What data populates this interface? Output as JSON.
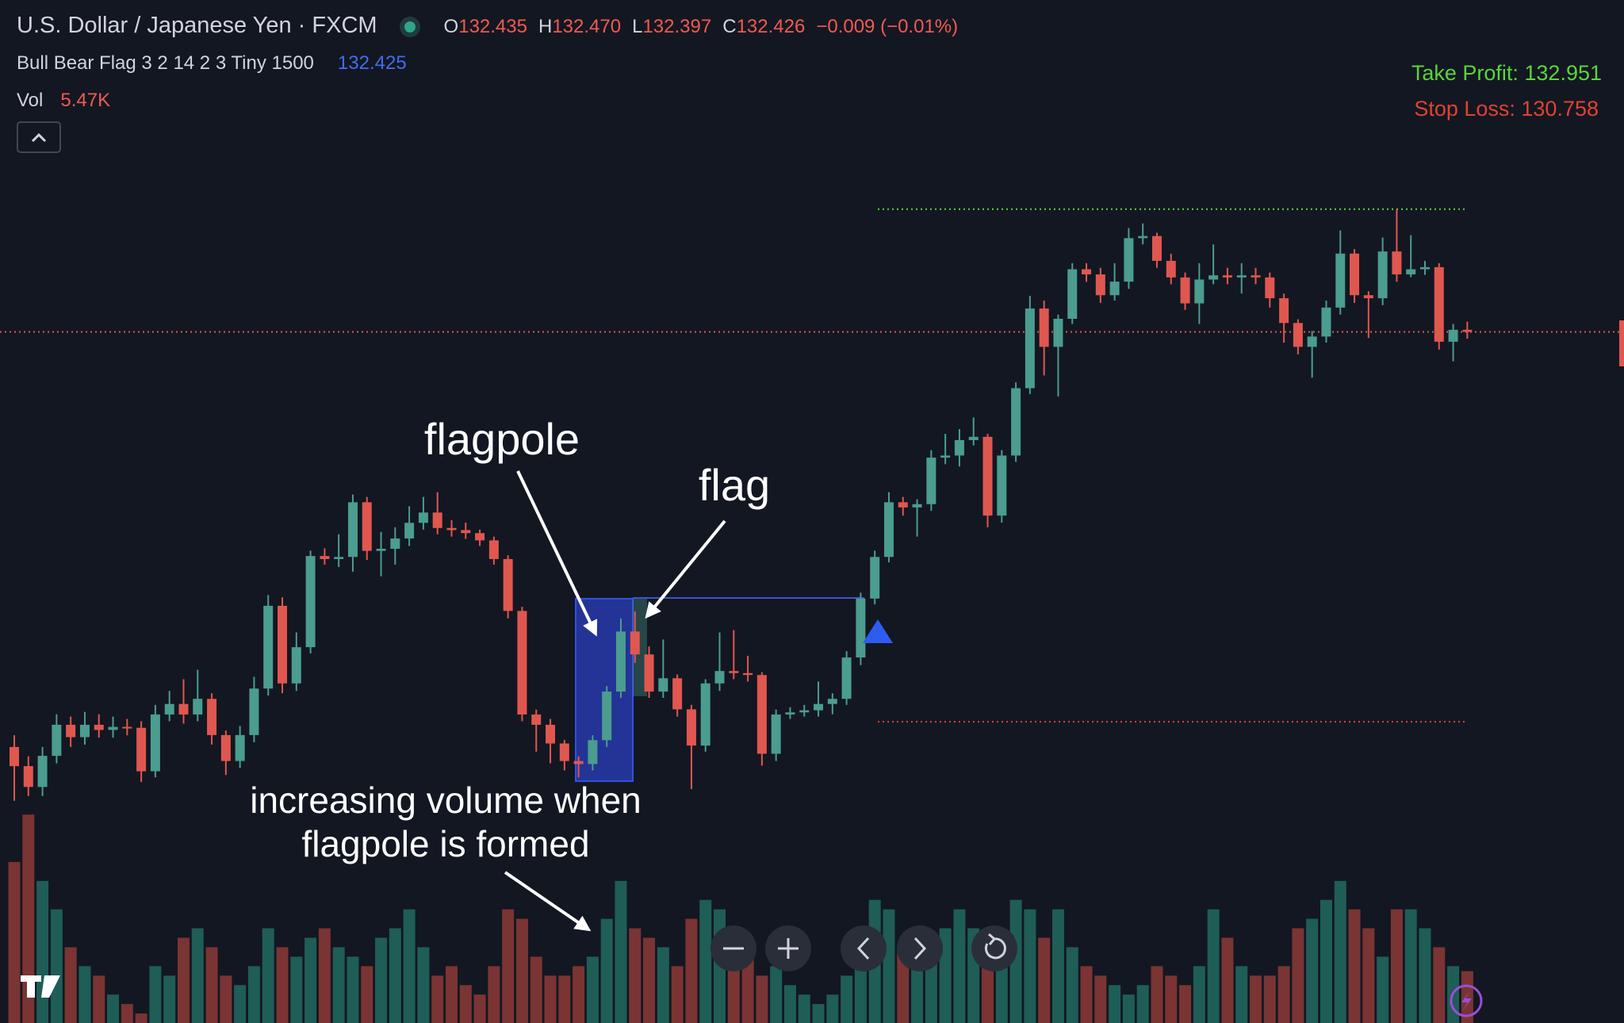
{
  "header": {
    "title": "U.S. Dollar / Japanese Yen · FXCM",
    "legend": [
      {
        "key": "O",
        "value": "132.435"
      },
      {
        "key": "H",
        "value": "132.470"
      },
      {
        "key": "L",
        "value": "132.397"
      },
      {
        "key": "C",
        "value": "132.426"
      }
    ],
    "change": "−0.009 (−0.01%)",
    "indicator": "Bull Bear Flag 3 2 14 2 3 Tiny 1500",
    "indicator_value": "132.425",
    "volume_title": "Vol",
    "volume_value": "5.47K"
  },
  "annotations": {
    "flagpole": "flagpole",
    "flag": "flag",
    "volume_line1": "increasing volume when",
    "volume_line2": "flagpole is formed"
  },
  "chart_data": {
    "type": "candlestick",
    "ylim": [
      129.469,
      133.846
    ],
    "volume_ylim": [
      0,
      108
    ],
    "up_color": "#4a9d8f",
    "down_color": "#e0574f",
    "volume_up_color": "#1f5d57",
    "volume_down_color": "#7a3433",
    "take_profit": 132.951,
    "take_profit_label": "Take Profit: 132.951",
    "take_profit_color": "#5ad43c",
    "stop_loss": 130.758,
    "stop_loss_label": "Stop Loss: 130.758",
    "stop_loss_color": "#e0432f",
    "open": [
      130.65,
      130.568,
      130.479,
      130.612,
      130.745,
      130.692,
      130.745,
      130.723,
      130.736,
      130.732,
      130.546,
      130.789,
      130.834,
      130.789,
      130.856,
      130.701,
      130.59,
      130.701,
      130.9,
      131.254,
      130.922,
      131.077,
      131.467,
      131.454,
      131.463,
      131.697,
      131.489,
      131.498,
      131.542,
      131.609,
      131.653,
      131.587,
      131.578,
      131.565,
      131.534,
      131.454,
      131.232,
      130.789,
      130.745,
      130.665,
      130.59,
      130.577,
      130.679,
      130.887,
      131.144,
      131.046,
      130.887,
      130.944,
      130.811,
      130.656,
      130.922,
      130.975,
      130.966,
      130.958,
      130.621,
      130.789,
      130.798,
      130.807,
      130.834,
      130.856,
      131.033,
      131.285,
      131.463,
      131.697,
      131.675,
      131.689,
      131.888,
      131.897,
      131.963,
      131.977,
      131.64,
      131.897,
      132.185,
      132.526,
      132.362,
      132.482,
      132.694,
      132.672,
      132.583,
      132.641,
      132.827,
      132.836,
      132.73,
      132.659,
      132.548,
      132.65,
      132.668,
      132.659,
      132.668,
      132.659,
      132.57,
      132.464,
      132.362,
      132.406,
      132.53,
      132.761,
      132.583,
      132.57,
      132.77,
      132.672,
      132.694,
      132.703,
      132.384,
      132.435
    ],
    "high": [
      130.7,
      130.61,
      130.65,
      130.79,
      130.78,
      130.8,
      130.79,
      130.78,
      130.77,
      130.76,
      130.83,
      130.89,
      130.94,
      130.98,
      130.88,
      130.72,
      130.74,
      130.95,
      131.3,
      131.29,
      131.14,
      131.49,
      131.5,
      131.56,
      131.73,
      131.72,
      131.57,
      131.59,
      131.68,
      131.72,
      131.74,
      131.62,
      131.61,
      131.58,
      131.55,
      131.47,
      131.25,
      130.81,
      130.77,
      130.68,
      130.61,
      130.7,
      130.91,
      131.2,
      131.23,
      131.08,
      131.11,
      130.96,
      130.83,
      130.94,
      131.14,
      131.15,
      131.04,
      130.97,
      130.81,
      130.82,
      130.83,
      130.93,
      130.88,
      131.06,
      131.31,
      131.49,
      131.74,
      131.72,
      131.71,
      131.92,
      131.99,
      132.01,
      132.06,
      131.99,
      131.92,
      132.21,
      132.58,
      132.56,
      132.5,
      132.72,
      132.72,
      132.7,
      132.72,
      132.87,
      132.89,
      132.85,
      132.76,
      132.68,
      132.72,
      132.8,
      132.7,
      132.72,
      132.7,
      132.68,
      132.59,
      132.48,
      132.43,
      132.56,
      132.86,
      132.78,
      132.6,
      132.83,
      132.95,
      132.84,
      132.73,
      132.72,
      132.46,
      132.47
    ],
    "low": [
      130.42,
      130.44,
      130.44,
      130.58,
      130.65,
      130.66,
      130.69,
      130.69,
      130.7,
      130.5,
      130.52,
      130.76,
      130.75,
      130.76,
      130.66,
      130.53,
      130.56,
      130.67,
      130.87,
      130.88,
      130.89,
      131.05,
      131.43,
      131.42,
      131.4,
      131.45,
      131.38,
      131.43,
      131.51,
      131.58,
      131.56,
      131.55,
      131.54,
      131.51,
      131.43,
      131.2,
      130.76,
      130.63,
      130.58,
      130.55,
      130.52,
      130.55,
      130.65,
      130.86,
      131.01,
      130.86,
      130.86,
      130.78,
      130.47,
      130.63,
      130.89,
      130.94,
      130.93,
      130.57,
      130.59,
      130.77,
      130.78,
      130.78,
      130.79,
      130.83,
      131.0,
      131.26,
      131.44,
      131.64,
      131.55,
      131.66,
      131.86,
      131.85,
      131.94,
      131.59,
      131.61,
      131.87,
      132.16,
      132.24,
      132.15,
      132.46,
      132.64,
      132.55,
      132.56,
      132.61,
      132.8,
      132.7,
      132.63,
      132.52,
      132.46,
      132.63,
      132.63,
      132.59,
      132.63,
      132.53,
      132.38,
      132.33,
      132.23,
      132.38,
      132.5,
      132.55,
      132.4,
      132.54,
      132.64,
      132.66,
      132.67,
      132.35,
      132.3,
      132.397
    ],
    "close": [
      130.568,
      130.479,
      130.612,
      130.745,
      130.692,
      130.745,
      130.723,
      130.736,
      130.732,
      130.546,
      130.789,
      130.834,
      130.789,
      130.856,
      130.701,
      130.59,
      130.701,
      130.9,
      131.254,
      130.922,
      131.077,
      131.467,
      131.454,
      131.463,
      131.697,
      131.489,
      131.498,
      131.542,
      131.609,
      131.653,
      131.587,
      131.578,
      131.565,
      131.534,
      131.454,
      131.232,
      130.789,
      130.745,
      130.665,
      130.59,
      130.577,
      130.679,
      130.887,
      131.144,
      131.046,
      130.887,
      130.944,
      130.811,
      130.656,
      130.922,
      130.975,
      130.966,
      130.958,
      130.621,
      130.789,
      130.798,
      130.807,
      130.834,
      130.856,
      131.033,
      131.285,
      131.463,
      131.697,
      131.675,
      131.689,
      131.888,
      131.897,
      131.963,
      131.977,
      131.64,
      131.897,
      132.185,
      132.526,
      132.362,
      132.482,
      132.694,
      132.672,
      132.583,
      132.641,
      132.827,
      132.836,
      132.73,
      132.659,
      132.548,
      132.65,
      132.668,
      132.659,
      132.668,
      132.659,
      132.57,
      132.464,
      132.362,
      132.406,
      132.53,
      132.761,
      132.583,
      132.57,
      132.77,
      132.672,
      132.694,
      132.703,
      132.384,
      132.435,
      132.426
    ],
    "volume": [
      17,
      22,
      15,
      12,
      8,
      6,
      5,
      3,
      2,
      1,
      6,
      5,
      9,
      10,
      8,
      5,
      4,
      6,
      10,
      8,
      7,
      9,
      10,
      8,
      7,
      6,
      9,
      10,
      12,
      8,
      5,
      6,
      4,
      3,
      6,
      12,
      11,
      7,
      5,
      5,
      6,
      7,
      11,
      15,
      10,
      9,
      8,
      6,
      11,
      13,
      12,
      10,
      8,
      5,
      6,
      4,
      3,
      2,
      3,
      5,
      9,
      13,
      12,
      8,
      9,
      7,
      10,
      12,
      10,
      9,
      8,
      13,
      12,
      9,
      12,
      8,
      6,
      5,
      4,
      3,
      4,
      6,
      5,
      4,
      6,
      12,
      9,
      6,
      5,
      5,
      6,
      10,
      11,
      13,
      15,
      12,
      10,
      7,
      12,
      12,
      10,
      8,
      6,
      5.47
    ]
  }
}
